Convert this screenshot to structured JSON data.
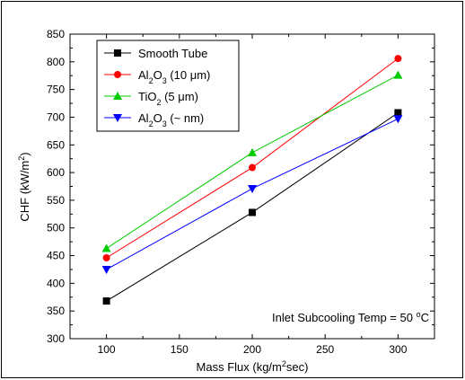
{
  "chart_data": {
    "type": "line",
    "x": [
      100,
      200,
      300
    ],
    "xlim": [
      75,
      325
    ],
    "ylim": [
      300,
      850
    ],
    "xticks": [
      100,
      150,
      200,
      250,
      300
    ],
    "yticks": [
      300,
      350,
      400,
      450,
      500,
      550,
      600,
      650,
      700,
      750,
      800,
      850
    ],
    "xlabel": {
      "main": "Mass Flux (kg/m",
      "sup": "2",
      "tail": "sec)"
    },
    "ylabel": {
      "main": "CHF (kW/m",
      "sup": "2",
      "tail": ")"
    },
    "annotation": {
      "main": "Inlet Subcooling Temp = 50 ",
      "sup": "o",
      "tail": "C"
    },
    "grid": false,
    "legend_position": "top-left",
    "series": [
      {
        "name": "Smooth Tube",
        "label": {
          "a": "Smooth Tube"
        },
        "marker": "square",
        "color": "#000000",
        "values": [
          368,
          528,
          708
        ]
      },
      {
        "name": "Al2O3 (10 μm)",
        "label": {
          "a": "Al",
          "sub1": "2",
          "b": "O",
          "sub2": "3",
          "c": " (10 μm)"
        },
        "marker": "circle",
        "color": "#ff0000",
        "values": [
          446,
          609,
          806
        ]
      },
      {
        "name": "TiO2 (5 μm)",
        "label": {
          "a": "TiO",
          "sub1": "2",
          "b": " (5 μm)"
        },
        "marker": "triangle-up",
        "color": "#00cc00",
        "values": [
          463,
          636,
          776
        ]
      },
      {
        "name": "Al2O3 (~ nm)",
        "label": {
          "a": "Al",
          "sub1": "2",
          "b": "O",
          "sub2": "3",
          "c": " (~ nm)"
        },
        "marker": "triangle-down",
        "color": "#0000ff",
        "values": [
          425,
          571,
          697
        ]
      }
    ]
  }
}
